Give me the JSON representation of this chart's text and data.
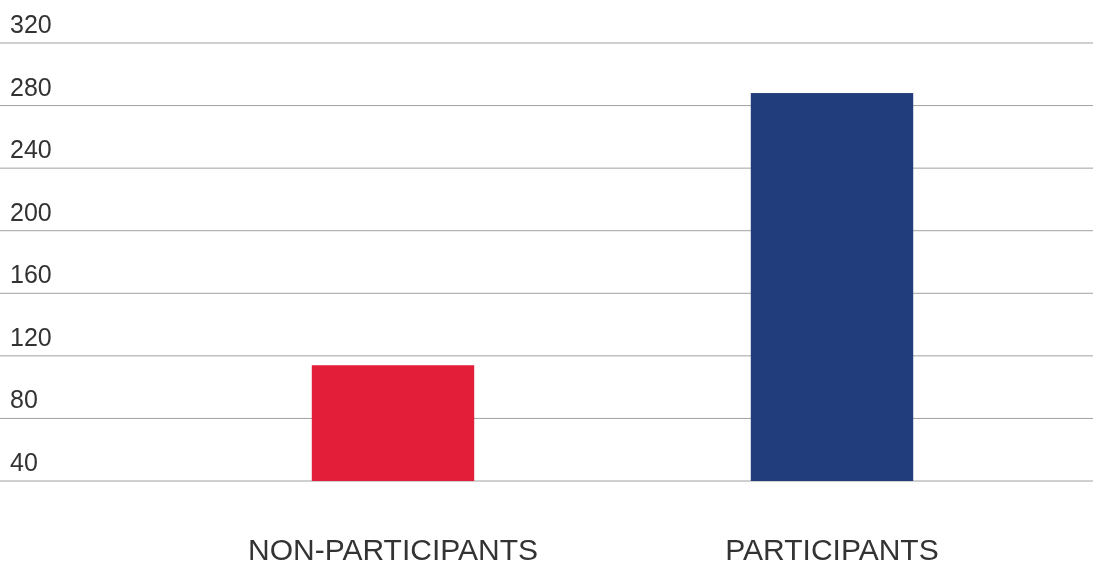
{
  "chart_data": {
    "type": "bar",
    "categories": [
      "NON-PARTICIPANTS",
      "PARTICIPANTS"
    ],
    "values": [
      114,
      288
    ],
    "colors": [
      "#e31e38",
      "#223d7c"
    ],
    "ylim": [
      40,
      320
    ],
    "yticks": [
      40,
      80,
      120,
      160,
      200,
      240,
      280,
      320
    ],
    "grid": "y"
  }
}
